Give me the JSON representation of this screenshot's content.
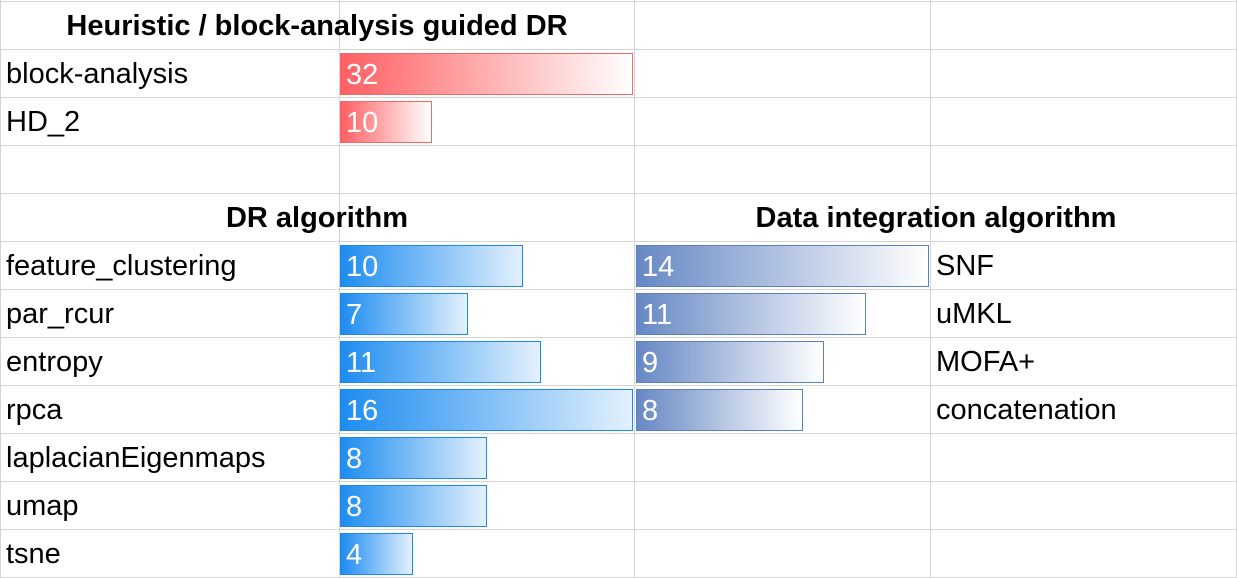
{
  "chart_data": [
    {
      "type": "bar",
      "orientation": "horizontal",
      "title": "Heuristic / block-analysis guided DR",
      "categories": [
        "block-analysis",
        "HD_2"
      ],
      "values": [
        32,
        10
      ],
      "color": "#ff5f62",
      "value_max": 32
    },
    {
      "type": "bar",
      "orientation": "horizontal",
      "title": "DR algorithm",
      "categories": [
        "feature_clustering",
        "par_rcur",
        "entropy",
        "rpca",
        "laplacianEigenmaps",
        "umap",
        "tsne"
      ],
      "values": [
        10,
        7,
        11,
        16,
        8,
        8,
        4
      ],
      "color": "#1d8cf0",
      "value_max": 16
    },
    {
      "type": "bar",
      "orientation": "horizontal",
      "title": "Data integration algorithm",
      "categories": [
        "SNF",
        "uMKL",
        "MOFA+",
        "concatenation"
      ],
      "values": [
        14,
        11,
        9,
        8
      ],
      "color": "#6688c4",
      "value_max": 14
    }
  ]
}
